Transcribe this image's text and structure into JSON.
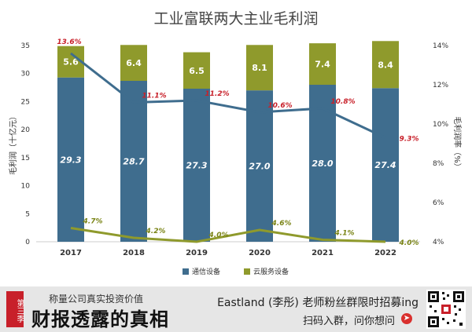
{
  "chart_data": {
    "type": "bar",
    "title": "工业富联两大主业毛利润",
    "ylabel": "毛利润（十亿元）",
    "y2label": "毛利润率（%）",
    "categories": [
      "2017",
      "2018",
      "2019",
      "2020",
      "2021",
      "2022"
    ],
    "ylim": [
      0,
      35
    ],
    "y_ticks": [
      "0",
      "5",
      "10",
      "15",
      "20",
      "25",
      "30",
      "35"
    ],
    "y2lim": [
      4,
      14
    ],
    "y2_ticks": [
      "4%",
      "6%",
      "8%",
      "10%",
      "12%",
      "14%"
    ],
    "series": [
      {
        "name": "通信设备",
        "kind": "bar",
        "stack": "gp",
        "color": "#3f6d8e",
        "values": [
          29.3,
          28.7,
          27.3,
          27.0,
          28.0,
          27.4
        ],
        "labels": [
          "29.3",
          "28.7",
          "27.3",
          "27.0",
          "28.0",
          "27.4"
        ]
      },
      {
        "name": "云服务设备",
        "kind": "bar",
        "stack": "gp",
        "color": "#8f9a2c",
        "values": [
          5.6,
          6.4,
          6.5,
          8.1,
          7.4,
          8.4
        ],
        "labels": [
          "5.6",
          "6.4",
          "6.5",
          "8.1",
          "7.4",
          "8.4"
        ]
      },
      {
        "kind": "line",
        "axis": "right",
        "color": "#3f6d8e",
        "values": [
          13.6,
          11.1,
          11.2,
          10.6,
          10.8,
          9.3
        ],
        "labels": [
          "13.6%",
          "11.1%",
          "11.2%",
          "10.6%",
          "10.8%",
          "9.3%"
        ],
        "label_color": "#c8202a"
      },
      {
        "kind": "line",
        "axis": "right",
        "color": "#8f9a2c",
        "values": [
          4.7,
          4.2,
          4.0,
          4.6,
          4.1,
          4.0
        ],
        "labels": [
          "4.7%",
          "4.2%",
          "4.0%",
          "4.6%",
          "4.1%",
          "4.0%"
        ],
        "label_color": "#7a8416"
      }
    ],
    "legend": [
      {
        "label": "通信设备",
        "color": "#3f6d8e"
      },
      {
        "label": "云服务设备",
        "color": "#8f9a2c"
      }
    ],
    "legend_position": "bottom",
    "grid": false
  },
  "banner": {
    "badge": "第三季",
    "slogan": "称量公司真实投资价值",
    "brand": "财报透露的真相",
    "cta_line1": "Eastland (李彤) 老师粉丝群限时招募ing",
    "cta_line2": "扫码入群，问你想问",
    "cta_icon": "arrow-right-icon"
  }
}
